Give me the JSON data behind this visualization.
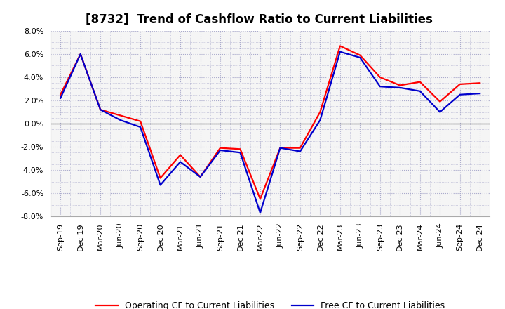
{
  "title": "[8732]  Trend of Cashflow Ratio to Current Liabilities",
  "x_labels": [
    "Sep-19",
    "Dec-19",
    "Mar-20",
    "Jun-20",
    "Sep-20",
    "Dec-20",
    "Mar-21",
    "Jun-21",
    "Sep-21",
    "Dec-21",
    "Mar-22",
    "Jun-22",
    "Sep-22",
    "Dec-22",
    "Mar-23",
    "Jun-23",
    "Sep-23",
    "Dec-23",
    "Mar-24",
    "Jun-24",
    "Sep-24",
    "Dec-24"
  ],
  "operating_cf": [
    2.5,
    6.0,
    1.2,
    0.7,
    0.2,
    -4.7,
    -2.7,
    -4.6,
    -2.1,
    -2.2,
    -6.5,
    -2.1,
    -2.1,
    1.0,
    6.7,
    5.9,
    4.0,
    3.3,
    3.6,
    1.9,
    3.4,
    3.5
  ],
  "free_cf": [
    2.2,
    6.0,
    1.2,
    0.3,
    -0.3,
    -5.3,
    -3.3,
    -4.6,
    -2.3,
    -2.5,
    -7.7,
    -2.1,
    -2.4,
    0.3,
    6.2,
    5.7,
    3.2,
    3.1,
    2.8,
    1.0,
    2.5,
    2.6
  ],
  "operating_color": "#ff0000",
  "free_color": "#0000cc",
  "ylim": [
    -8.0,
    8.0
  ],
  "yticks": [
    -8.0,
    -6.0,
    -4.0,
    -2.0,
    0.0,
    2.0,
    4.0,
    6.0,
    8.0
  ],
  "background_color": "#ffffff",
  "plot_bg_color": "#f5f5f5",
  "grid_color": "#aaaacc",
  "title_fontsize": 12,
  "tick_fontsize": 8,
  "legend_fontsize": 9
}
